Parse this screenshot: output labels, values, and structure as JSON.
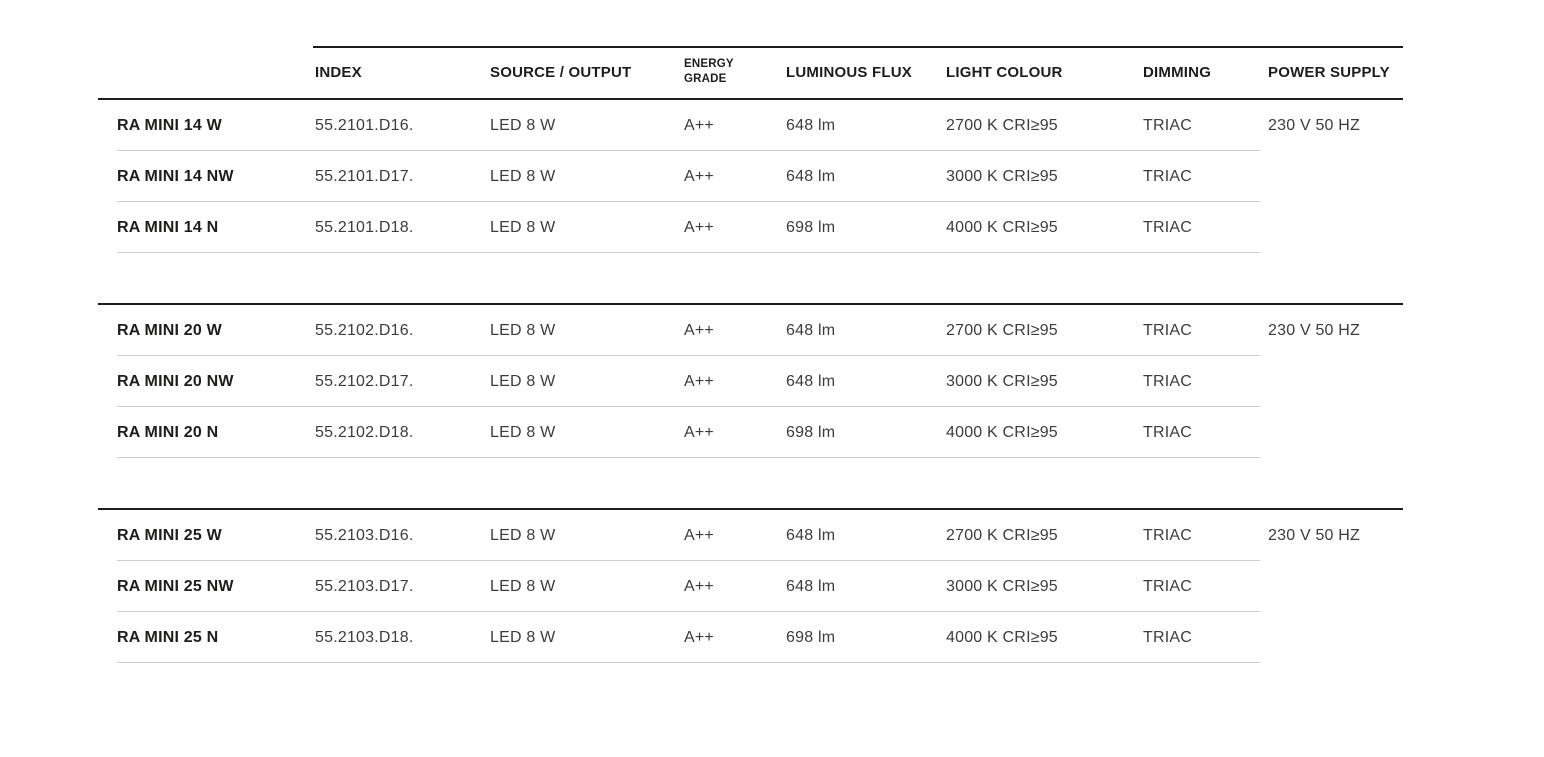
{
  "table": {
    "headers": {
      "index": "INDEX",
      "source": "SOURCE / OUTPUT",
      "energy_line1": "ENERGY",
      "energy_line2": "GRADE",
      "flux": "LUMINOUS FLUX",
      "colour": "LIGHT COLOUR",
      "dimming": "DIMMING",
      "power": "POWER SUPPLY"
    },
    "groups": [
      {
        "power_supply": "230 V 50 HZ",
        "rows": [
          {
            "name": "RA MINI 14 W",
            "index": "55.2101.D16.",
            "source": "LED 8 W",
            "energy": "A++",
            "flux": "648 lm",
            "colour": "2700 K CRI≥95",
            "dimming": "TRIAC"
          },
          {
            "name": "RA MINI 14 NW",
            "index": "55.2101.D17.",
            "source": "LED 8 W",
            "energy": "A++",
            "flux": "648 lm",
            "colour": "3000 K CRI≥95",
            "dimming": "TRIAC"
          },
          {
            "name": "RA MINI 14 N",
            "index": "55.2101.D18.",
            "source": "LED 8 W",
            "energy": "A++",
            "flux": "698 lm",
            "colour": "4000 K CRI≥95",
            "dimming": "TRIAC"
          }
        ]
      },
      {
        "power_supply": "230 V 50 HZ",
        "rows": [
          {
            "name": "RA MINI 20 W",
            "index": "55.2102.D16.",
            "source": "LED 8 W",
            "energy": "A++",
            "flux": "648 lm",
            "colour": "2700 K CRI≥95",
            "dimming": "TRIAC"
          },
          {
            "name": "RA MINI 20 NW",
            "index": "55.2102.D17.",
            "source": "LED 8 W",
            "energy": "A++",
            "flux": "648 lm",
            "colour": "3000 K CRI≥95",
            "dimming": "TRIAC"
          },
          {
            "name": "RA MINI 20 N",
            "index": "55.2102.D18.",
            "source": "LED 8 W",
            "energy": "A++",
            "flux": "698 lm",
            "colour": "4000 K CRI≥95",
            "dimming": "TRIAC"
          }
        ]
      },
      {
        "power_supply": "230 V 50 HZ",
        "rows": [
          {
            "name": "RA MINI 25 W",
            "index": "55.2103.D16.",
            "source": "LED 8 W",
            "energy": "A++",
            "flux": "648 lm",
            "colour": "2700 K CRI≥95",
            "dimming": "TRIAC"
          },
          {
            "name": "RA MINI 25 NW",
            "index": "55.2103.D17.",
            "source": "LED 8 W",
            "energy": "A++",
            "flux": "648 lm",
            "colour": "3000 K CRI≥95",
            "dimming": "TRIAC"
          },
          {
            "name": "RA MINI 25 N",
            "index": "55.2103.D18.",
            "source": "LED 8 W",
            "energy": "A++",
            "flux": "698 lm",
            "colour": "4000 K CRI≥95",
            "dimming": "TRIAC"
          }
        ]
      }
    ],
    "colors": {
      "heading_text": "#1d1d1b",
      "value_text": "#3c3c3b",
      "section_rule": "#1d1d1b",
      "row_divider": "#cfcfcf",
      "background": "#ffffff"
    }
  }
}
